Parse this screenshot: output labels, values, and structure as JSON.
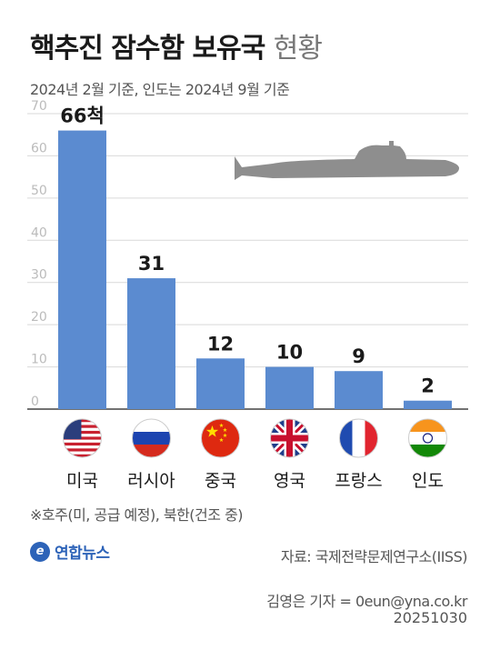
{
  "header": {
    "title": "핵추진 잠수함 보유국",
    "title_suffix": "현황",
    "subtitle": "2024년 2월 기준, 인도는 2024년 9월 기준"
  },
  "chart_data": {
    "type": "bar",
    "categories": [
      "미국",
      "러시아",
      "중국",
      "영국",
      "프랑스",
      "인도"
    ],
    "values": [
      66,
      31,
      12,
      10,
      9,
      2
    ],
    "data_labels": [
      "66척",
      "31",
      "12",
      "10",
      "9",
      "2"
    ],
    "yticks": [
      0,
      10,
      20,
      30,
      40,
      50,
      60,
      70
    ],
    "ylim": [
      0,
      70
    ],
    "grid": true,
    "bar_color": "#5b8bd0",
    "title": "핵추진 잠수함 보유국 현황",
    "xlabel": "",
    "ylabel": ""
  },
  "flags": [
    "us-flag-icon",
    "russia-flag-icon",
    "china-flag-icon",
    "uk-flag-icon",
    "france-flag-icon",
    "india-flag-icon"
  ],
  "decoration": {
    "icon": "submarine-icon",
    "color": "#8e8e8e"
  },
  "footer": {
    "note": "※호주(미, 공급 예정), 북한(건조 중)",
    "logo_text": "연합뉴스",
    "source": "자료: 국제전략문제연구소(IISS)",
    "reporter": "김영은 기자 = 0eun@yna.co.kr",
    "date": "20251030"
  }
}
